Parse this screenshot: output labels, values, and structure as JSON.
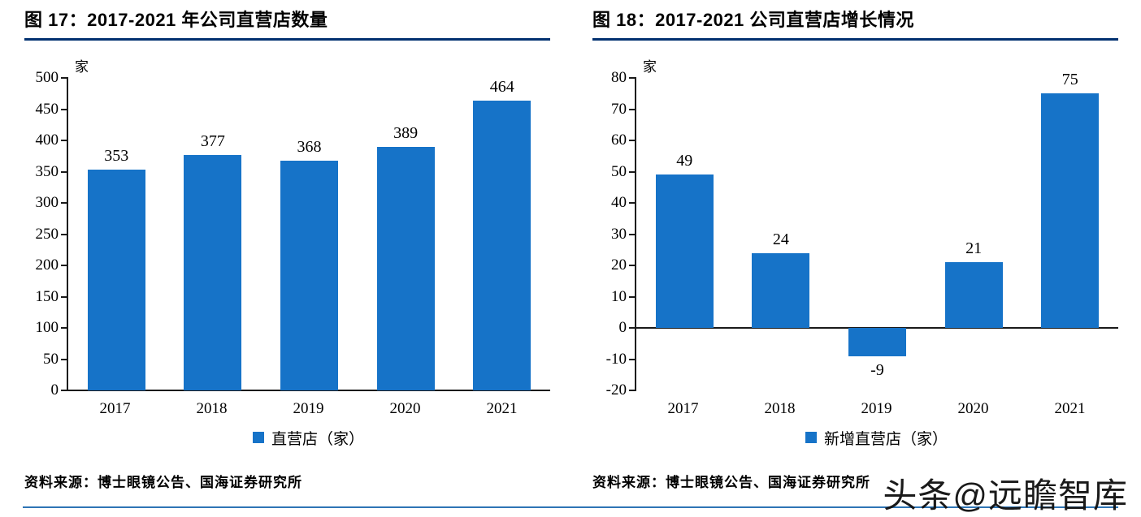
{
  "colors": {
    "bar": "#1673C8",
    "title_rule": "#003070",
    "footer_rule": "#2E74B5",
    "axis": "#1a1a1a"
  },
  "chart_data": [
    {
      "type": "bar",
      "title": "图 17：2017-2021 年公司直营店数量",
      "categories": [
        "2017",
        "2018",
        "2019",
        "2020",
        "2021"
      ],
      "values": [
        353,
        377,
        368,
        389,
        464
      ],
      "ylabel": "家",
      "xlabel": "",
      "ylim": [
        0,
        500
      ],
      "ytick_step": 50,
      "grid": false,
      "legend": [
        "直营店（家）"
      ],
      "legend_position": "bottom",
      "bar_color": "#1673C8"
    },
    {
      "type": "bar",
      "title": "图 18：2017-2021 公司直营店增长情况",
      "categories": [
        "2017",
        "2018",
        "2019",
        "2020",
        "2021"
      ],
      "values": [
        49,
        24,
        -9,
        21,
        75
      ],
      "ylabel": "家",
      "xlabel": "",
      "ylim": [
        -20,
        80
      ],
      "ytick_step": 10,
      "grid": false,
      "legend": [
        "新增直营店（家）"
      ],
      "legend_position": "bottom",
      "bar_color": "#1673C8"
    }
  ],
  "footer": {
    "source_left": "资料来源：博士眼镜公告、国海证券研究所",
    "source_right": "资料来源：博士眼镜公告、国海证券研究所",
    "watermark": "头条@远瞻智库"
  }
}
